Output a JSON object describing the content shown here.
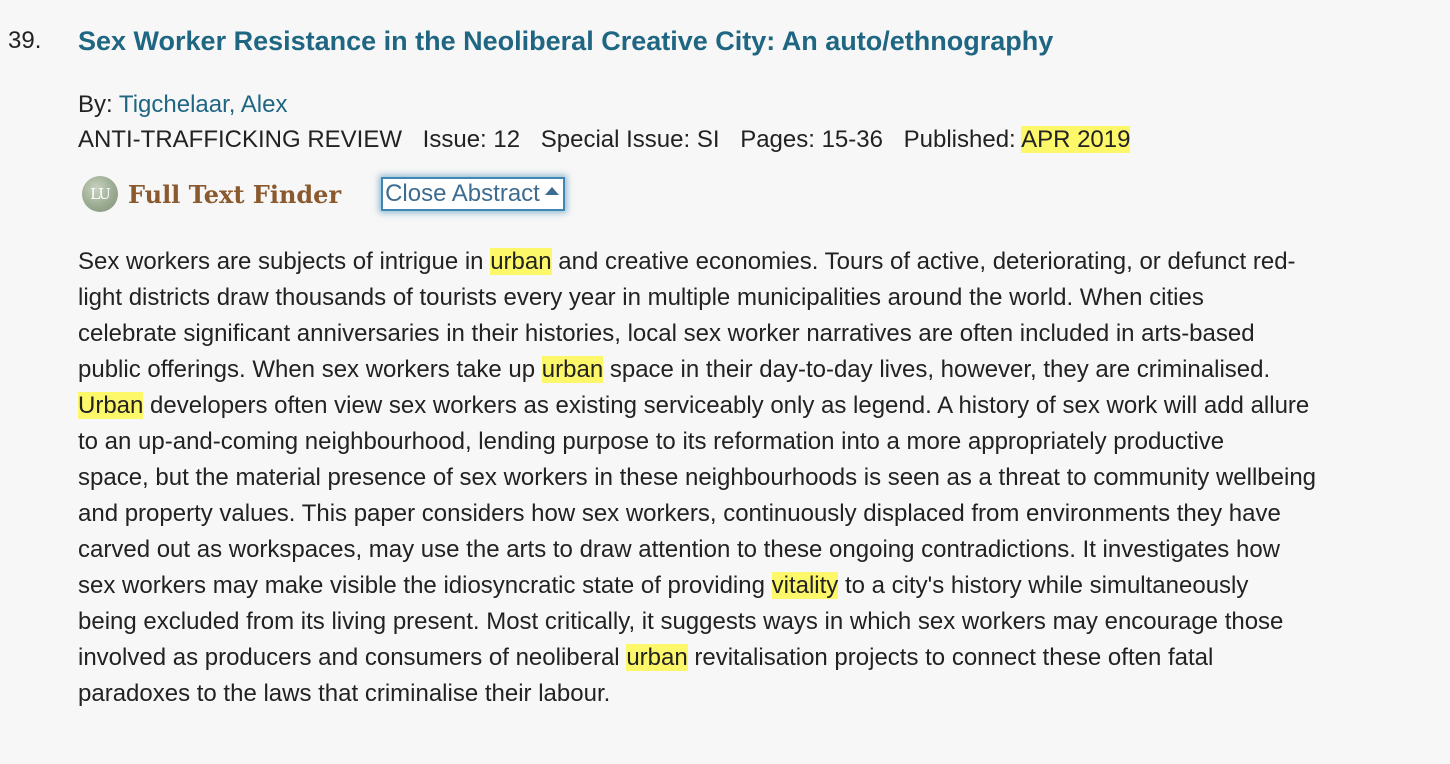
{
  "record": {
    "number": "39.",
    "title": "Sex Worker Resistance in the Neoliberal Creative City: An auto/ethnography",
    "by_label": "By:",
    "author": "Tigchelaar, Alex",
    "source": {
      "journal": "ANTI-TRAFFICKING REVIEW",
      "issue": "Issue: 12",
      "special_issue": "Special Issue: SI",
      "pages": "Pages: 15-36",
      "published_label": "Published:",
      "published_date": "APR 2019"
    },
    "actions": {
      "full_text_finder_logo": "LU",
      "full_text_finder": "Full Text Finder",
      "close_abstract": "Close Abstract",
      "close_abstract_icon": "caret-up-icon"
    },
    "abstract_lines": [
      [
        {
          "t": "Sex workers are subjects of intrigue in "
        },
        {
          "t": "urban",
          "hl": true
        },
        {
          "t": " and creative economies. Tours of active, deteriorating, or defunct red-"
        }
      ],
      [
        {
          "t": "light districts draw thousands of tourists every year in multiple municipalities around the world. When cities"
        }
      ],
      [
        {
          "t": "celebrate significant anniversaries in their histories, local sex worker narratives are often included in arts-based"
        }
      ],
      [
        {
          "t": "public offerings. When sex workers take up "
        },
        {
          "t": "urban",
          "hl": true
        },
        {
          "t": " space in their day-to-day lives, however, they are criminalised."
        }
      ],
      [
        {
          "t": "Urban",
          "hl": true
        },
        {
          "t": " developers often view sex workers as existing serviceably only as legend. A history of sex work will add allure"
        }
      ],
      [
        {
          "t": "to an up-and-coming neighbourhood, lending purpose to its reformation into a more appropriately productive"
        }
      ],
      [
        {
          "t": "space, but the material presence of sex workers in these neighbourhoods is seen as a threat to community wellbeing"
        }
      ],
      [
        {
          "t": "and property values. This paper considers how sex workers, continuously displaced from environments they have"
        }
      ],
      [
        {
          "t": "carved out as workspaces, may use the arts to draw attention to these ongoing contradictions. It investigates how"
        }
      ],
      [
        {
          "t": "sex workers may make visible the idiosyncratic state of providing "
        },
        {
          "t": "vitality",
          "hl": true
        },
        {
          "t": " to a city's history while simultaneously"
        }
      ],
      [
        {
          "t": "being excluded from its living present. Most critically, it suggests ways in which sex workers may encourage those"
        }
      ],
      [
        {
          "t": "involved as producers and consumers of neoliberal "
        },
        {
          "t": "urban",
          "hl": true
        },
        {
          "t": " revitalisation projects to connect these often fatal"
        }
      ],
      [
        {
          "t": "paradoxes to the laws that criminalise their labour."
        }
      ]
    ],
    "colors": {
      "link": "#1f6683",
      "highlight": "#fdf76a",
      "background": "#f7f7f7",
      "full_text_finder": "#8a5a2e",
      "button_border": "#3f88b5"
    }
  }
}
